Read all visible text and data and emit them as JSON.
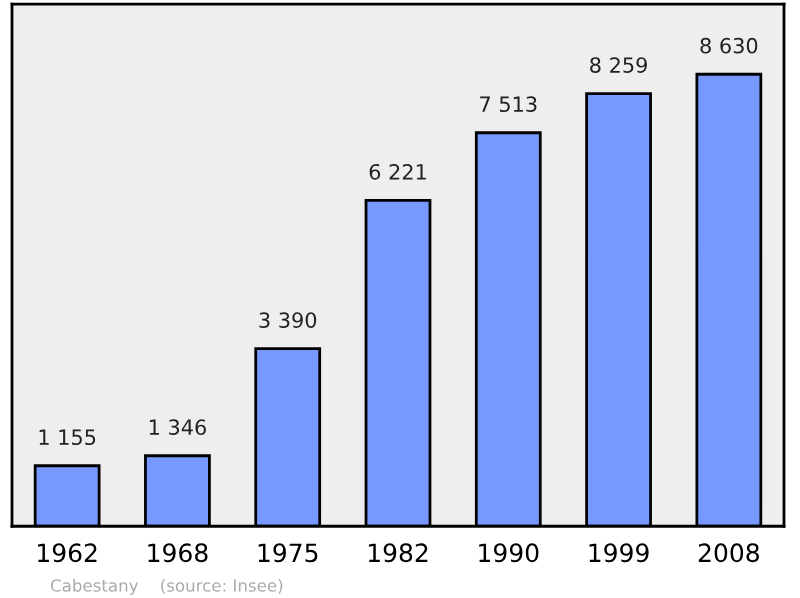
{
  "chart_data": {
    "type": "bar",
    "categories": [
      "1962",
      "1968",
      "1975",
      "1982",
      "1990",
      "1999",
      "2008"
    ],
    "values": [
      1155,
      1346,
      3390,
      6221,
      7513,
      8259,
      8630
    ],
    "value_labels": [
      "1 155",
      "1 346",
      "3 390",
      "6 221",
      "7 513",
      "8 259",
      "8 630"
    ],
    "color": "#7799ff",
    "annotations": [
      "Cabestany    (source: Insee)"
    ],
    "grid": false
  }
}
